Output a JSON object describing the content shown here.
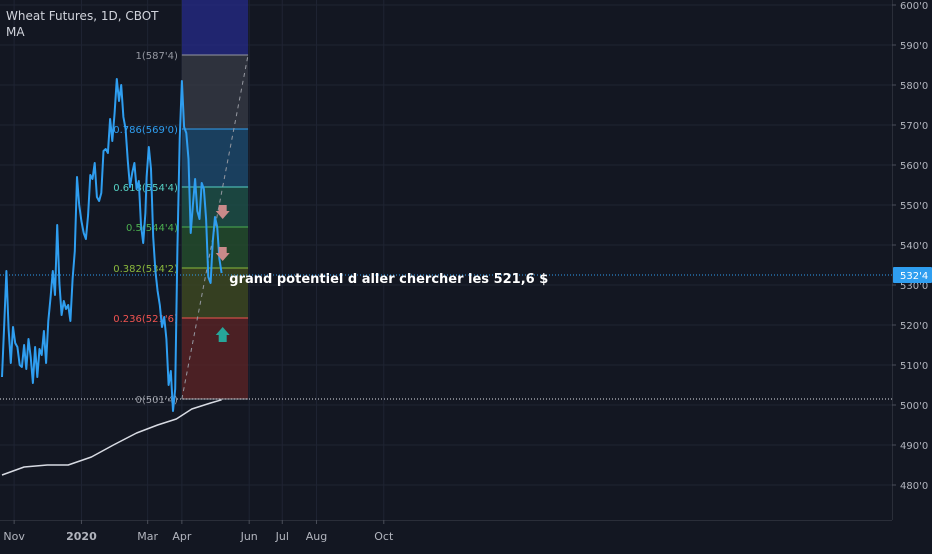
{
  "legend": {
    "title": "Wheat Futures, 1D, CBOT",
    "indicator": "MA"
  },
  "colors": {
    "background": "#131722",
    "price_line": "#2f9ef0",
    "ma_line": "#d8dbe3",
    "axis_text": "#b2b5be",
    "grid": "#1f2433",
    "price_tag_bg": "#2f9ef0",
    "annotation_text": "#ffffff",
    "arrow_down": "#c98a8a",
    "arrow_up": "#26a69a"
  },
  "chart_data": {
    "type": "line",
    "symbol": "Wheat Futures, 1D, CBOT",
    "x_ticks": [
      "Nov",
      "2020",
      "Mar",
      "Apr",
      "Jun",
      "Jul",
      "Aug",
      "Oct"
    ],
    "y_ticks": [
      "600'0",
      "590'0",
      "580'0",
      "570'0",
      "560'0",
      "550'0",
      "540'0",
      "530'0",
      "520'0",
      "510'0",
      "500'0",
      "490'0",
      "480'0"
    ],
    "y_range": [
      474,
      600
    ],
    "x_range": [
      "2019-10-21",
      "2020-11-02"
    ],
    "last_price_label": "532'4",
    "last_price": 532.5,
    "support_level": 501.5,
    "series": [
      {
        "name": "Wheat Futures",
        "points": [
          [
            "2019-10-21",
            507.0
          ],
          [
            "2019-10-23",
            520.0
          ],
          [
            "2019-10-25",
            533.5
          ],
          [
            "2019-10-27",
            519.0
          ],
          [
            "2019-10-29",
            510.5
          ],
          [
            "2019-10-31",
            519.5
          ],
          [
            "2019-11-02",
            515.5
          ],
          [
            "2019-11-04",
            514.5
          ],
          [
            "2019-11-06",
            510.0
          ],
          [
            "2019-11-08",
            509.5
          ],
          [
            "2019-11-10",
            515.0
          ],
          [
            "2019-11-12",
            509.0
          ],
          [
            "2019-11-14",
            516.5
          ],
          [
            "2019-11-16",
            512.0
          ],
          [
            "2019-11-18",
            505.5
          ],
          [
            "2019-11-20",
            514.5
          ],
          [
            "2019-11-22",
            507.0
          ],
          [
            "2019-11-24",
            514.0
          ],
          [
            "2019-11-26",
            512.5
          ],
          [
            "2019-11-28",
            518.5
          ],
          [
            "2019-11-30",
            510.5
          ],
          [
            "2019-12-02",
            521.0
          ],
          [
            "2019-12-04",
            527.0
          ],
          [
            "2019-12-06",
            533.5
          ],
          [
            "2019-12-08",
            527.5
          ],
          [
            "2019-12-10",
            545.0
          ],
          [
            "2019-12-12",
            530.5
          ],
          [
            "2019-12-14",
            522.5
          ],
          [
            "2019-12-16",
            526.0
          ],
          [
            "2019-12-18",
            524.0
          ],
          [
            "2019-12-20",
            525.0
          ],
          [
            "2019-12-22",
            521.0
          ],
          [
            "2019-12-24",
            531.5
          ],
          [
            "2019-12-26",
            538.5
          ],
          [
            "2019-12-28",
            557.0
          ],
          [
            "2019-12-30",
            550.0
          ],
          [
            "2020-01-01",
            546.0
          ],
          [
            "2020-01-03",
            543.0
          ],
          [
            "2020-01-05",
            541.5
          ],
          [
            "2020-01-07",
            547.5
          ],
          [
            "2020-01-09",
            557.5
          ],
          [
            "2020-01-11",
            556.5
          ],
          [
            "2020-01-13",
            560.5
          ],
          [
            "2020-01-15",
            552.0
          ],
          [
            "2020-01-17",
            551.0
          ],
          [
            "2020-01-19",
            553.0
          ],
          [
            "2020-01-21",
            563.5
          ],
          [
            "2020-01-23",
            564.0
          ],
          [
            "2020-01-25",
            563.0
          ],
          [
            "2020-01-27",
            571.5
          ],
          [
            "2020-01-29",
            566.0
          ],
          [
            "2020-01-31",
            573.0
          ],
          [
            "2020-02-02",
            581.5
          ],
          [
            "2020-02-04",
            576.0
          ],
          [
            "2020-02-06",
            580.0
          ],
          [
            "2020-02-08",
            572.0
          ],
          [
            "2020-02-10",
            569.0
          ],
          [
            "2020-02-12",
            561.0
          ],
          [
            "2020-02-14",
            554.5
          ],
          [
            "2020-02-16",
            558.0
          ],
          [
            "2020-02-18",
            560.5
          ],
          [
            "2020-02-20",
            554.0
          ],
          [
            "2020-02-22",
            556.0
          ],
          [
            "2020-02-24",
            545.0
          ],
          [
            "2020-02-26",
            540.5
          ],
          [
            "2020-02-28",
            548.0
          ],
          [
            "2020-02-29",
            557.0
          ],
          [
            "2020-03-02",
            564.5
          ],
          [
            "2020-03-04",
            559.0
          ],
          [
            "2020-03-06",
            542.0
          ],
          [
            "2020-03-08",
            533.5
          ],
          [
            "2020-03-10",
            528.5
          ],
          [
            "2020-03-12",
            525.0
          ],
          [
            "2020-03-14",
            519.5
          ],
          [
            "2020-03-16",
            522.0
          ],
          [
            "2020-03-18",
            516.5
          ],
          [
            "2020-03-20",
            505.0
          ],
          [
            "2020-03-22",
            508.5
          ],
          [
            "2020-03-24",
            498.5
          ],
          [
            "2020-03-26",
            504.0
          ],
          [
            "2020-03-28",
            539.0
          ],
          [
            "2020-03-30",
            566.5
          ],
          [
            "2020-04-01",
            581.0
          ],
          [
            "2020-04-03",
            569.5
          ],
          [
            "2020-04-05",
            568.0
          ],
          [
            "2020-04-07",
            561.5
          ],
          [
            "2020-04-09",
            543.0
          ],
          [
            "2020-04-11",
            550.0
          ],
          [
            "2020-04-13",
            556.5
          ],
          [
            "2020-04-15",
            548.5
          ],
          [
            "2020-04-17",
            546.5
          ],
          [
            "2020-04-19",
            555.5
          ],
          [
            "2020-04-21",
            554.0
          ],
          [
            "2020-04-23",
            546.5
          ],
          [
            "2020-04-25",
            532.0
          ],
          [
            "2020-04-27",
            530.5
          ],
          [
            "2020-04-29",
            541.0
          ],
          [
            "2020-05-01",
            547.0
          ],
          [
            "2020-05-03",
            544.5
          ],
          [
            "2020-05-05",
            536.5
          ],
          [
            "2020-05-07",
            533.0
          ]
        ]
      },
      {
        "name": "MA",
        "points": [
          [
            "2019-10-21",
            482.5
          ],
          [
            "2019-11-10",
            484.5
          ],
          [
            "2019-12-01",
            485.0
          ],
          [
            "2019-12-20",
            485.0
          ],
          [
            "2020-01-10",
            487.0
          ],
          [
            "2020-01-30",
            490.0
          ],
          [
            "2020-02-20",
            493.0
          ],
          [
            "2020-03-10",
            495.0
          ],
          [
            "2020-03-27",
            496.5
          ],
          [
            "2020-04-10",
            499.0
          ],
          [
            "2020-04-27",
            500.5
          ],
          [
            "2020-05-07",
            501.3
          ]
        ]
      }
    ],
    "fibonacci": {
      "start_date": "2020-04-01",
      "end_date": "2020-05-31",
      "levels": [
        {
          "ratio": "1",
          "label": "1(587'4)",
          "price": 587.5,
          "line_color": "#9598a1",
          "fill": "#363a45"
        },
        {
          "ratio": "0.786",
          "label": "0.786(569'0)",
          "price": 569.0,
          "line_color": "#2f9ef0",
          "fill": "#1d4a6e"
        },
        {
          "ratio": "0.618",
          "label": "0.618(554'4)",
          "price": 554.5,
          "line_color": "#56d1c4",
          "fill": "#1e5148"
        },
        {
          "ratio": "0.5",
          "label": "0.5(544'4)",
          "price": 544.5,
          "line_color": "#4caf50",
          "fill": "#244f2d"
        },
        {
          "ratio": "0.382",
          "label": "0.382(534'2)",
          "price": 534.25,
          "line_color": "#8ab83c",
          "fill": "#3f4a22"
        },
        {
          "ratio": "0.236",
          "label": "0.236(521'6)",
          "price": 521.75,
          "line_color": "#ef5350",
          "fill": "#5a2326"
        },
        {
          "ratio": "0",
          "label": "0(501'4)",
          "price": 501.5,
          "line_color": "#9598a1",
          "fill": "#3a1f25"
        }
      ],
      "extension_fill": "#262b8a"
    },
    "markers": [
      {
        "date": "2020-05-08",
        "price": 548.0,
        "direction": "down"
      },
      {
        "date": "2020-05-08",
        "price": 537.5,
        "direction": "down"
      },
      {
        "date": "2020-05-08",
        "price": 517.5,
        "direction": "up"
      }
    ],
    "annotation": {
      "text": "grand potentiel d aller chercher les 521,6 $",
      "date": "2020-05-14",
      "price": 531.5
    }
  }
}
